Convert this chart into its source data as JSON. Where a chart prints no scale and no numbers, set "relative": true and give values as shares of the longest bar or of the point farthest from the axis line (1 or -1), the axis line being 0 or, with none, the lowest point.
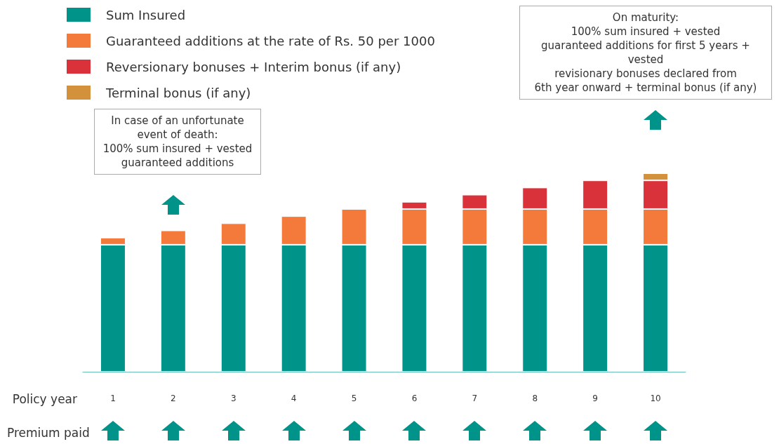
{
  "chart_data": {
    "type": "bar",
    "stacked": true,
    "relative": true,
    "xlabel": "Policy year",
    "categories": [
      "1",
      "2",
      "3",
      "4",
      "5",
      "6",
      "7",
      "8",
      "9",
      "10"
    ],
    "series": [
      {
        "name": "Sum Insured",
        "color": "#00938a",
        "values": [
          0.64,
          0.64,
          0.64,
          0.64,
          0.64,
          0.64,
          0.64,
          0.64,
          0.64,
          0.64
        ]
      },
      {
        "name": "Guaranteed additions at the rate of Rs. 50 per 1000",
        "color": "#f47a3c",
        "values": [
          0.036,
          0.072,
          0.108,
          0.144,
          0.18,
          0.18,
          0.18,
          0.18,
          0.18,
          0.18
        ]
      },
      {
        "name": "Reversionary bonuses + Interim bonus (if any)",
        "color": "#d9323a",
        "values": [
          null,
          null,
          null,
          null,
          null,
          0.036,
          0.072,
          0.108,
          0.144,
          0.144
        ]
      },
      {
        "name": "Terminal bonus (if any)",
        "color": "#d4913c",
        "values": [
          null,
          null,
          null,
          null,
          null,
          null,
          null,
          null,
          null,
          0.036
        ]
      }
    ],
    "annotations": [
      "In case of an unfortunate\nevent of death:\n100% sum insured + vested\nguaranteed additions",
      "On maturity:\n100% sum insured + vested\nguaranteed additions for first 5 years + vested\nrevisionary bonuses declared from\n6th year onward + terminal bonus (if any)",
      "Premium paid"
    ],
    "legend": "top left"
  }
}
